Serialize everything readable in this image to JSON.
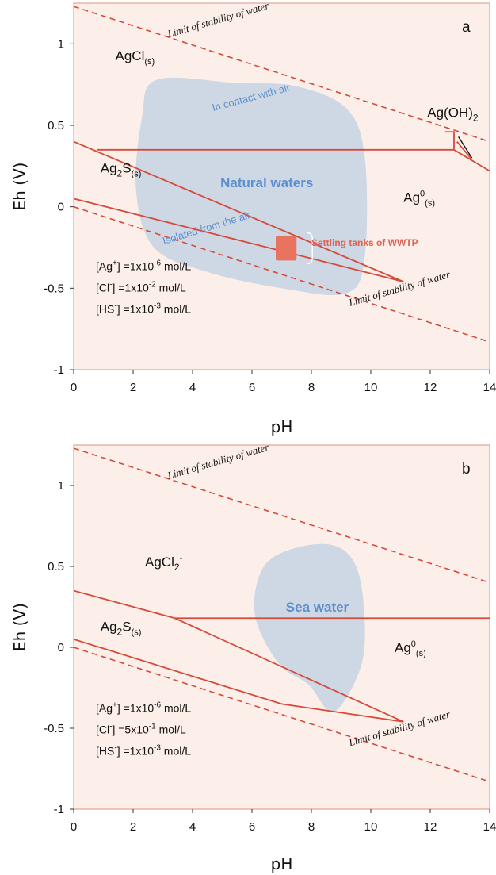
{
  "chart_data": [
    {
      "type": "line",
      "panel_label": "a",
      "xlabel": "pH",
      "ylabel": "Eh (V)",
      "xlim": [
        0,
        14
      ],
      "ylim": [
        -1,
        1.25
      ],
      "x_ticks": [
        "0",
        "2",
        "4",
        "6",
        "8",
        "10",
        "12",
        "14"
      ],
      "y_ticks": [
        {
          "value": 1,
          "label": "1"
        },
        {
          "value": 0.5,
          "label": "0.5"
        },
        {
          "value": 0,
          "label": "0"
        },
        {
          "value": -0.5,
          "label": "-0.5"
        },
        {
          "value": -1,
          "label": "-1"
        }
      ],
      "water_limits": [
        {
          "label": "Limit of stability of water",
          "points": [
            [
              0,
              1.23
            ],
            [
              14,
              0.4
            ]
          ],
          "label_pos": [
            3.2,
            1.04
          ],
          "angle": -16
        },
        {
          "label": "Limit of stability of water",
          "points": [
            [
              0,
              0.0
            ],
            [
              14,
              -0.83
            ]
          ],
          "label_pos": [
            9.3,
            -0.61
          ],
          "angle": -16
        }
      ],
      "boundaries": [
        {
          "points": [
            [
              0,
              0.4
            ],
            [
              11.1,
              -0.46
            ]
          ]
        },
        {
          "points": [
            [
              0,
              0.05
            ],
            [
              11.1,
              -0.46
            ]
          ]
        },
        {
          "points": [
            [
              0.8,
              0.35
            ],
            [
              12.8,
              0.35
            ],
            [
              14,
              0.22
            ]
          ]
        },
        {
          "points": [
            [
              12.5,
              0.46
            ],
            [
              12.8,
              0.46
            ],
            [
              12.8,
              0.35
            ]
          ]
        },
        {
          "points": [
            [
              12.9,
              0.4
            ],
            [
              13.4,
              0.29
            ]
          ]
        }
      ],
      "species": [
        {
          "label": "AgCl",
          "sub": "(s)",
          "sup": "",
          "pos": [
            1.4,
            0.9
          ]
        },
        {
          "label": "Ag(OH)",
          "sub": "2",
          "sup": "-",
          "pos": [
            11.9,
            0.55
          ]
        },
        {
          "label": "Ag",
          "sub": "(s)",
          "sup": "0",
          "pos": [
            11.1,
            0.03
          ]
        },
        {
          "label": "Ag",
          "sub": "(s)",
          "sup": "2",
          "pos": [
            0.9,
            0.21
          ],
          "kind": "ag2s",
          "rest": "S"
        }
      ],
      "zones": [
        {
          "label": "Natural waters",
          "label_pos": [
            6.5,
            0.12
          ],
          "size": 17,
          "bold": true,
          "angle": 0,
          "outline": [
            [
              2.8,
              0.78
            ],
            [
              5.5,
              0.76
            ],
            [
              7.5,
              0.74
            ],
            [
              9.2,
              0.6
            ],
            [
              9.8,
              0.3
            ],
            [
              9.8,
              -0.3
            ],
            [
              9.2,
              -0.53
            ],
            [
              7.0,
              -0.5
            ],
            [
              4.5,
              -0.4
            ],
            [
              2.7,
              -0.25
            ],
            [
              2.1,
              0.1
            ],
            [
              2.3,
              0.55
            ]
          ]
        },
        {
          "label": "In contact with air",
          "label_pos": [
            6.0,
            0.65
          ],
          "size": 13,
          "bold": false,
          "angle": -15
        },
        {
          "label": "Isolated from the air",
          "label_pos": [
            4.5,
            -0.15
          ],
          "size": 13,
          "bold": false,
          "angle": -17
        }
      ],
      "wwtp": {
        "label": "Settling tanks of WWTP",
        "rect": [
          6.8,
          -0.18,
          7.5,
          -0.33
        ],
        "label_pos": [
          8.0,
          -0.22
        ]
      },
      "conditions": [
        "[Ag+] =1x10-6 mol/L",
        "[Cl-] =1x10-2 mol/L",
        "[HS-] =1x10-3 mol/L"
      ]
    },
    {
      "type": "line",
      "panel_label": "b",
      "xlabel": "pH",
      "ylabel": "Eh (V)",
      "xlim": [
        0,
        14
      ],
      "ylim": [
        -1,
        1.25
      ],
      "x_ticks": [
        "0",
        "2",
        "4",
        "6",
        "8",
        "10",
        "12",
        "14"
      ],
      "y_ticks": [
        {
          "value": 1,
          "label": "1"
        },
        {
          "value": 0.5,
          "label": "0.5"
        },
        {
          "value": 0,
          "label": "0"
        },
        {
          "value": -0.5,
          "label": "-0.5"
        },
        {
          "value": -1,
          "label": "-1"
        }
      ],
      "water_limits": [
        {
          "label": "Limit of stability of water",
          "points": [
            [
              0,
              1.23
            ],
            [
              14,
              0.4
            ]
          ],
          "label_pos": [
            3.2,
            1.04
          ],
          "angle": -16
        },
        {
          "label": "Limit of stability of water",
          "points": [
            [
              0,
              0.0
            ],
            [
              14,
              -0.83
            ]
          ],
          "label_pos": [
            9.3,
            -0.61
          ],
          "angle": -16
        }
      ],
      "boundaries": [
        {
          "points": [
            [
              0,
              0.35
            ],
            [
              3.4,
              0.18
            ],
            [
              11.1,
              -0.46
            ]
          ]
        },
        {
          "points": [
            [
              0,
              0.05
            ],
            [
              7.0,
              -0.35
            ],
            [
              11.1,
              -0.46
            ]
          ]
        },
        {
          "points": [
            [
              3.4,
              0.18
            ],
            [
              14,
              0.18
            ]
          ]
        }
      ],
      "species": [
        {
          "label": "AgCl",
          "sub": "",
          "sup": "2",
          "pos": [
            2.4,
            0.5
          ],
          "kind": "agcl2"
        },
        {
          "label": "Ag",
          "sub": "(s)",
          "sup": "0",
          "pos": [
            10.8,
            -0.03
          ]
        },
        {
          "label": "Ag",
          "sub": "(s)",
          "sup": "2",
          "pos": [
            0.9,
            0.1
          ],
          "kind": "ag2s",
          "rest": "S"
        }
      ],
      "zones": [
        {
          "label": "Sea water",
          "label_pos": [
            8.2,
            0.22
          ],
          "size": 17,
          "bold": true,
          "angle": 0,
          "outline": [
            [
              7.6,
              0.62
            ],
            [
              8.9,
              0.62
            ],
            [
              9.6,
              0.45
            ],
            [
              9.8,
              0.05
            ],
            [
              9.5,
              -0.2
            ],
            [
              8.7,
              -0.4
            ],
            [
              7.9,
              -0.23
            ],
            [
              6.9,
              -0.1
            ],
            [
              6.1,
              0.2
            ],
            [
              6.4,
              0.5
            ]
          ]
        }
      ],
      "conditions": [
        "[Ag+] =1x10-6 mol/L",
        "[Cl-] =5x10-1 mol/L",
        "[HS-] =1x10-3 mol/L"
      ]
    }
  ]
}
